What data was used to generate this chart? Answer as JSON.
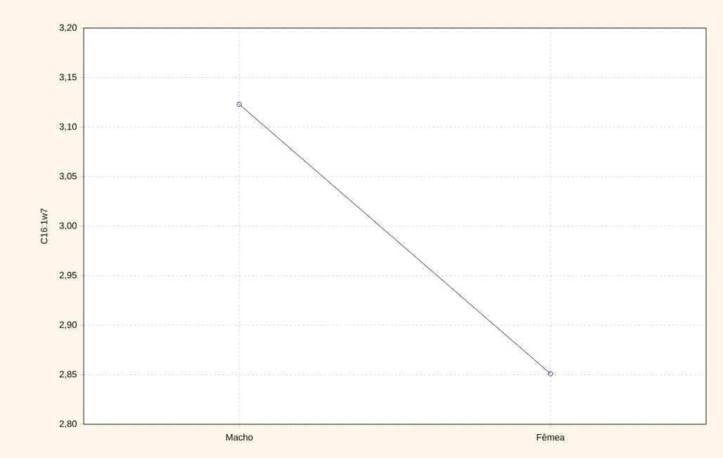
{
  "chart_data": {
    "type": "line",
    "ylabel": "C16:1w7",
    "categories": [
      "Macho",
      "Fêmea"
    ],
    "series": [
      {
        "color": "#2b2b8f",
        "values": [
          3.123,
          2.851
        ]
      }
    ],
    "ylim": [
      2.8,
      3.2
    ],
    "yticks": [
      {
        "value": 2.8,
        "label": "2,80"
      },
      {
        "value": 2.85,
        "label": "2,85"
      },
      {
        "value": 2.9,
        "label": "2,90"
      },
      {
        "value": 2.95,
        "label": "2,95"
      },
      {
        "value": 3.0,
        "label": "3,00"
      },
      {
        "value": 3.05,
        "label": "3,05"
      },
      {
        "value": 3.1,
        "label": "3,10"
      },
      {
        "value": 3.15,
        "label": "3,15"
      },
      {
        "value": 3.2,
        "label": "3,20"
      }
    ],
    "grid": true,
    "marker": "circle",
    "line_style": "solid"
  }
}
